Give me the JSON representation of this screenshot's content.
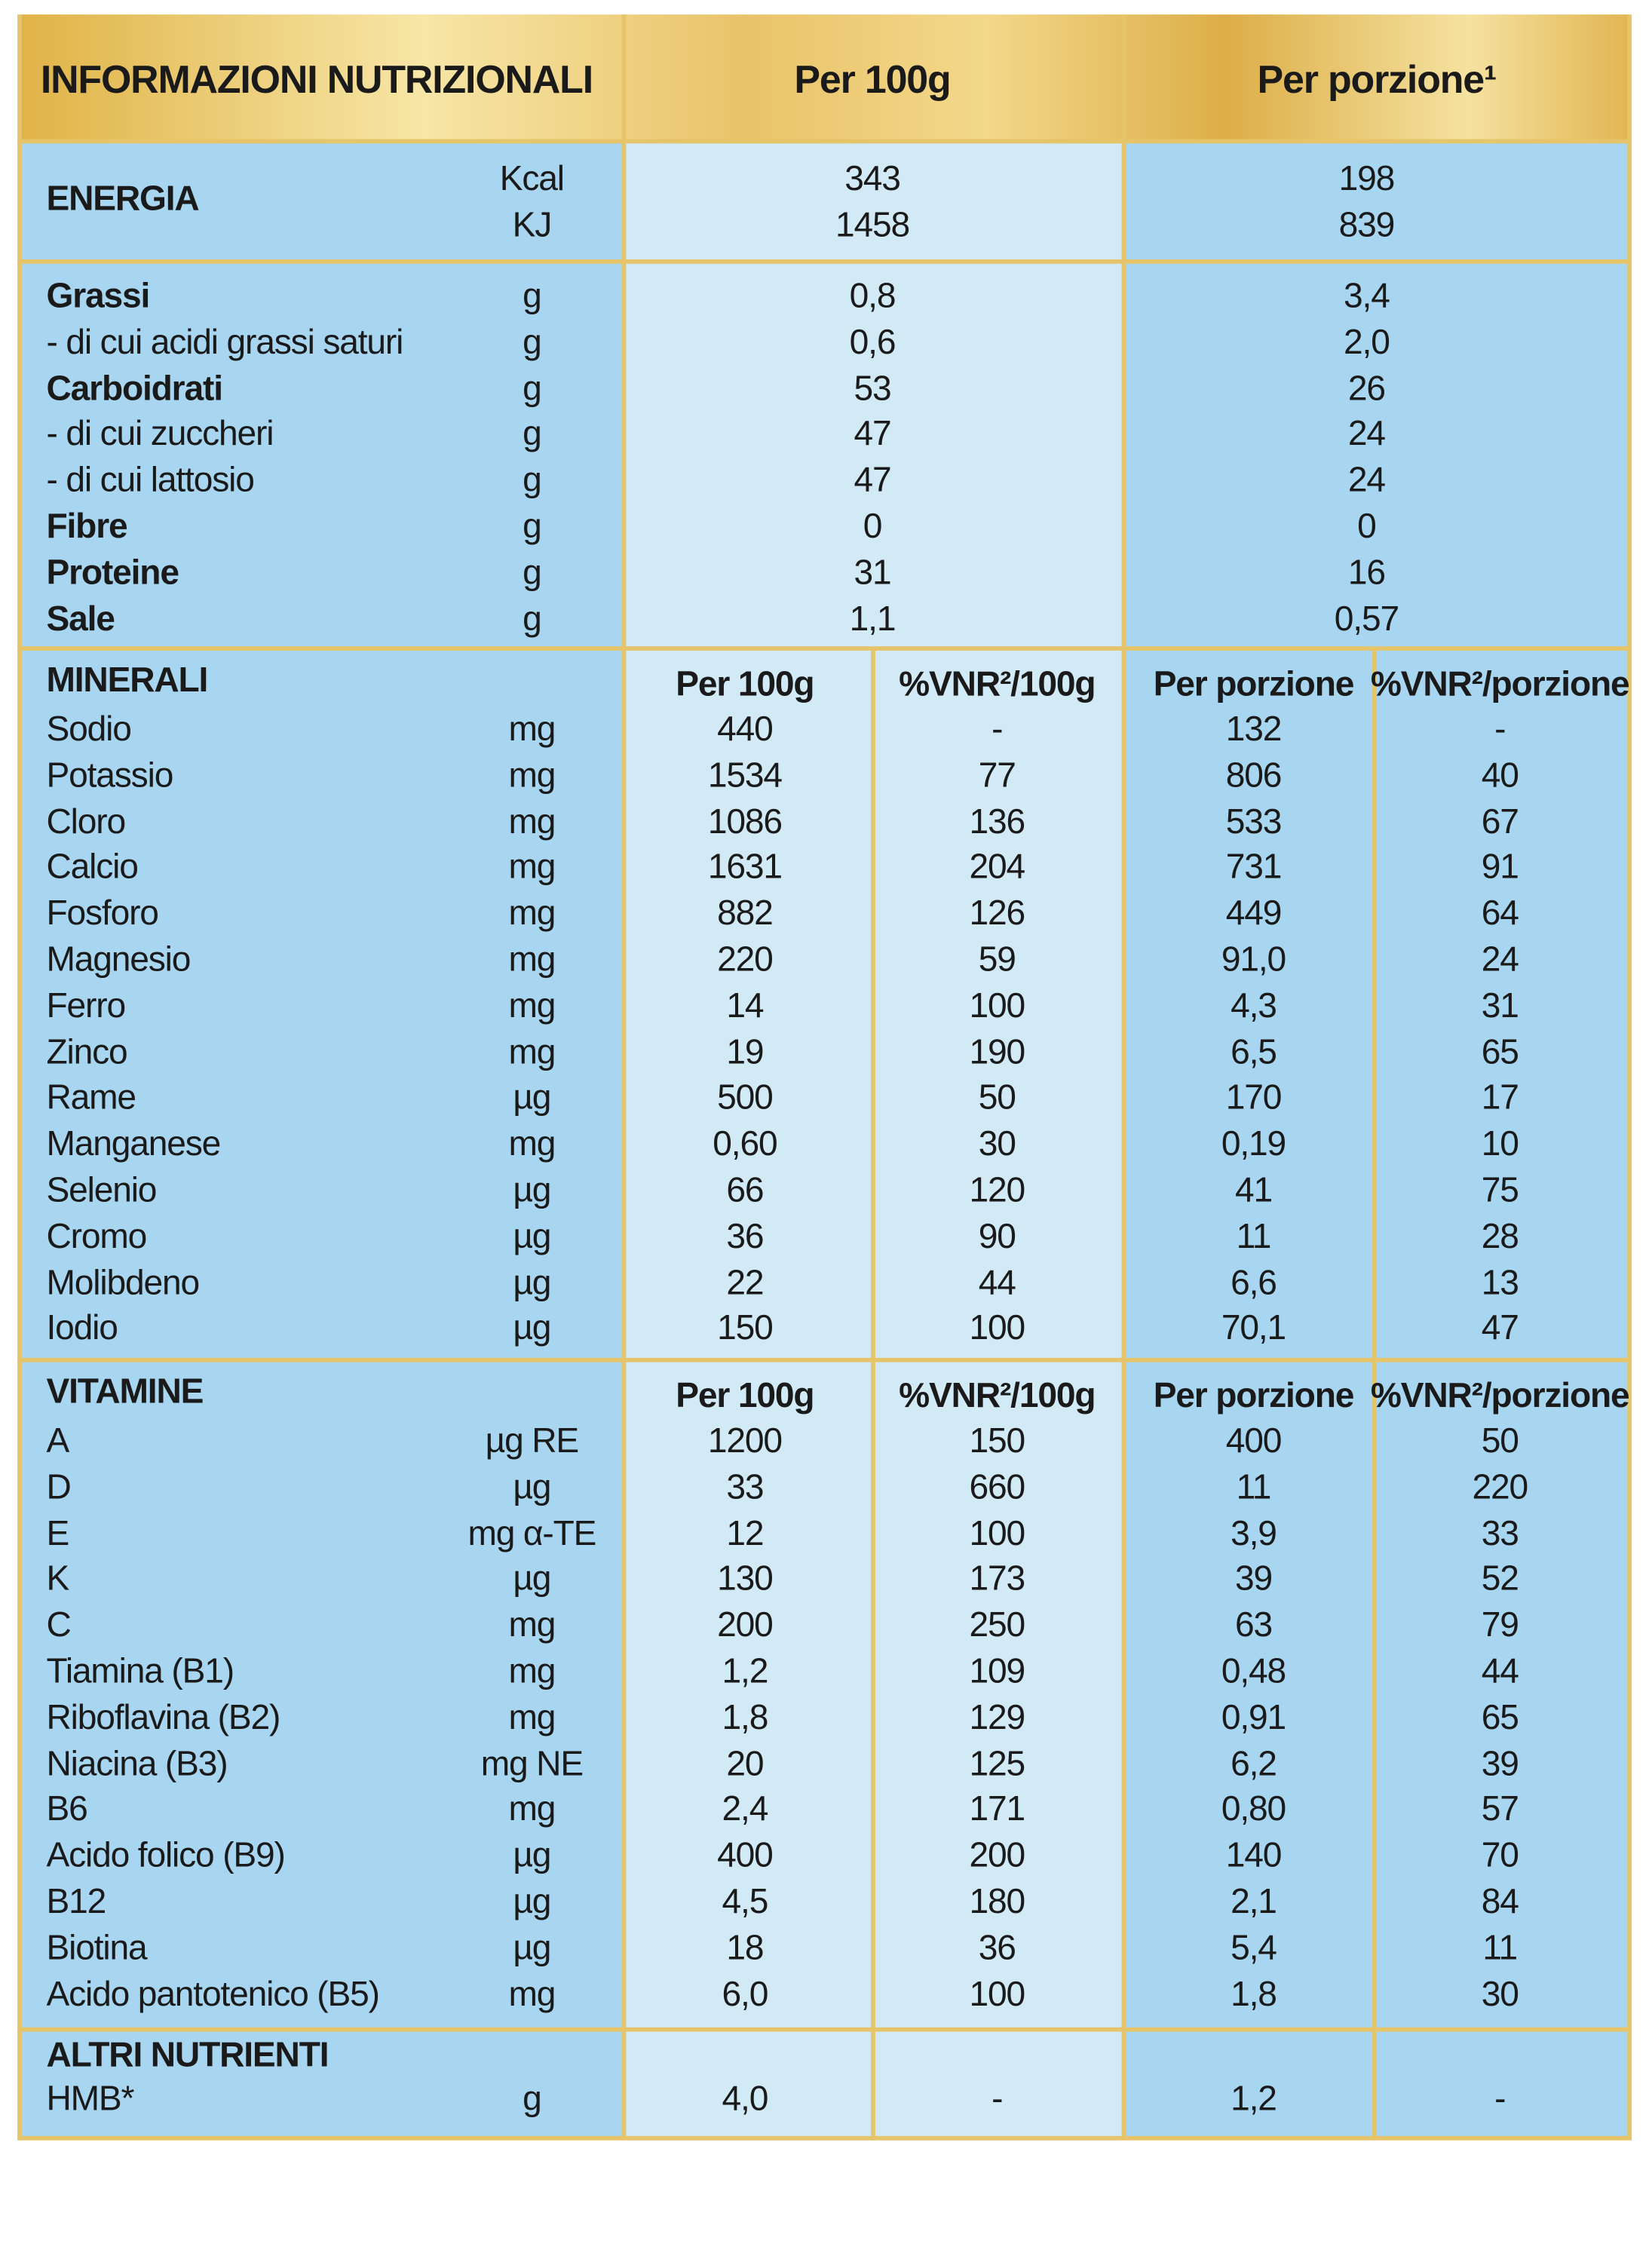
{
  "header": {
    "title": "INFORMAZIONI NUTRIZIONALI",
    "per100g": "Per 100g",
    "perPortion": "Per porzione¹"
  },
  "energy": {
    "label": "ENERGIA",
    "units": [
      "Kcal",
      "KJ"
    ],
    "per100g": [
      "343",
      "1458"
    ],
    "perPortion": [
      "198",
      "839"
    ]
  },
  "macros": {
    "rows": [
      [
        "Grassi",
        "g",
        "0,8",
        "3,4"
      ],
      [
        "- di cui acidi grassi saturi",
        "g",
        "0,6",
        "2,0"
      ],
      [
        "Carboidrati",
        "g",
        "53",
        "26"
      ],
      [
        "- di cui zuccheri",
        "g",
        "47",
        "24"
      ],
      [
        "- di cui lattosio",
        "g",
        "47",
        "24"
      ],
      [
        "Fibre",
        "g",
        "0",
        "0"
      ],
      [
        "Proteine",
        "g",
        "31",
        "16"
      ],
      [
        "Sale",
        "g",
        "1,1",
        "0,57"
      ]
    ]
  },
  "minerals": {
    "title": "MINERALI",
    "headers": [
      "Per 100g",
      "%VNR²/100g",
      "Per porzione",
      "%VNR²/porzione"
    ],
    "rows": [
      [
        "Sodio",
        "mg",
        "440",
        "-",
        "132",
        "-"
      ],
      [
        "Potassio",
        "mg",
        "1534",
        "77",
        "806",
        "40"
      ],
      [
        "Cloro",
        "mg",
        "1086",
        "136",
        "533",
        "67"
      ],
      [
        "Calcio",
        "mg",
        "1631",
        "204",
        "731",
        "91"
      ],
      [
        "Fosforo",
        "mg",
        "882",
        "126",
        "449",
        "64"
      ],
      [
        "Magnesio",
        "mg",
        "220",
        "59",
        "91,0",
        "24"
      ],
      [
        "Ferro",
        "mg",
        "14",
        "100",
        "4,3",
        "31"
      ],
      [
        "Zinco",
        "mg",
        "19",
        "190",
        "6,5",
        "65"
      ],
      [
        "Rame",
        "µg",
        "500",
        "50",
        "170",
        "17"
      ],
      [
        "Manganese",
        "mg",
        "0,60",
        "30",
        "0,19",
        "10"
      ],
      [
        "Selenio",
        "µg",
        "66",
        "120",
        "41",
        "75"
      ],
      [
        "Cromo",
        "µg",
        "36",
        "90",
        "11",
        "28"
      ],
      [
        "Molibdeno",
        "µg",
        "22",
        "44",
        "6,6",
        "13"
      ],
      [
        "Iodio",
        "µg",
        "150",
        "100",
        "70,1",
        "47"
      ]
    ]
  },
  "vitamins": {
    "title": "VITAMINE",
    "headers": [
      "Per 100g",
      "%VNR²/100g",
      "Per porzione",
      "%VNR²/porzione"
    ],
    "rows": [
      [
        "A",
        "µg RE",
        "1200",
        "150",
        "400",
        "50"
      ],
      [
        "D",
        "µg",
        "33",
        "660",
        "11",
        "220"
      ],
      [
        "E",
        "mg α-TE",
        "12",
        "100",
        "3,9",
        "33"
      ],
      [
        "K",
        "µg",
        "130",
        "173",
        "39",
        "52"
      ],
      [
        "C",
        "mg",
        "200",
        "250",
        "63",
        "79"
      ],
      [
        "Tiamina (B1)",
        "mg",
        "1,2",
        "109",
        "0,48",
        "44"
      ],
      [
        "Riboflavina (B2)",
        "mg",
        "1,8",
        "129",
        "0,91",
        "65"
      ],
      [
        "Niacina (B3)",
        "mg NE",
        "20",
        "125",
        "6,2",
        "39"
      ],
      [
        "B6",
        "mg",
        "2,4",
        "171",
        "0,80",
        "57"
      ],
      [
        "Acido folico (B9)",
        "µg",
        "400",
        "200",
        "140",
        "70"
      ],
      [
        "B12",
        "µg",
        "4,5",
        "180",
        "2,1",
        "84"
      ],
      [
        "Biotina",
        "µg",
        "18",
        "36",
        "5,4",
        "11"
      ],
      [
        "Acido pantotenico (B5)",
        "mg",
        "6,0",
        "100",
        "1,8",
        "30"
      ]
    ]
  },
  "others": {
    "title": "ALTRI NUTRIENTI",
    "rows": [
      [
        "HMB*",
        "g",
        "4,0",
        "-",
        "1,2",
        "-"
      ]
    ]
  }
}
